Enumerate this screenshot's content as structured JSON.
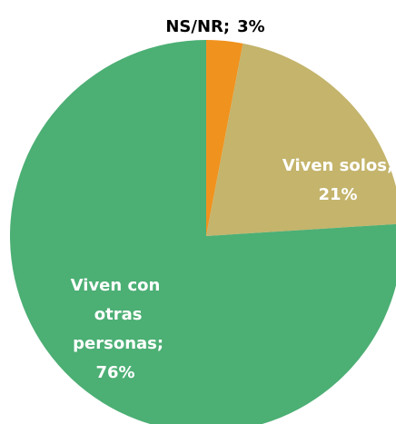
{
  "chart_data": {
    "type": "pie",
    "categories": [
      "NS/NR;",
      "Viven solos;",
      "Viven con otras personas;"
    ],
    "values": [
      3,
      21,
      76
    ],
    "value_labels": [
      "3%",
      "21%",
      "76%"
    ],
    "colors": [
      "#f0921e",
      "#c4b46c",
      "#4caf74"
    ]
  }
}
